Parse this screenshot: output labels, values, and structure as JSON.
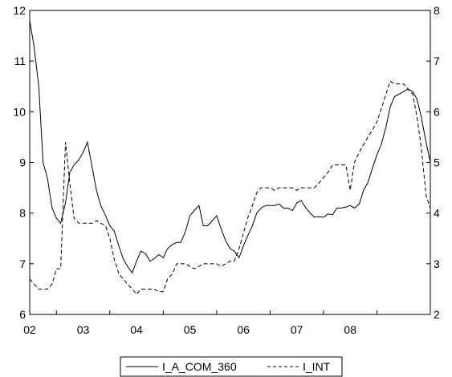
{
  "chart_data": {
    "type": "line",
    "x_categories": [
      "02",
      "03",
      "04",
      "05",
      "06",
      "07",
      "08"
    ],
    "x_start_year": 2001.5,
    "x_end_year": 2009.0,
    "y_left": {
      "min": 6,
      "max": 12,
      "ticks": [
        6,
        7,
        8,
        9,
        10,
        11,
        12
      ]
    },
    "y_right": {
      "min": 2,
      "max": 8,
      "ticks": [
        2,
        3,
        4,
        5,
        6,
        7,
        8
      ]
    },
    "grid": false,
    "legend_position": "bottom-center",
    "series": [
      {
        "name": "I_A_COM_360",
        "axis": "left",
        "style": "solid",
        "color": "#000000",
        "points": [
          [
            2001.5,
            11.8
          ],
          [
            2001.58,
            11.3
          ],
          [
            2001.67,
            10.5
          ],
          [
            2001.75,
            9.0
          ],
          [
            2001.83,
            8.7
          ],
          [
            2001.92,
            8.1
          ],
          [
            2002.0,
            7.9
          ],
          [
            2002.08,
            7.8
          ],
          [
            2002.17,
            8.2
          ],
          [
            2002.25,
            8.8
          ],
          [
            2002.33,
            8.95
          ],
          [
            2002.42,
            9.05
          ],
          [
            2002.5,
            9.2
          ],
          [
            2002.58,
            9.4
          ],
          [
            2002.67,
            8.9
          ],
          [
            2002.75,
            8.45
          ],
          [
            2002.83,
            8.15
          ],
          [
            2002.92,
            7.95
          ],
          [
            2003.0,
            7.75
          ],
          [
            2003.08,
            7.65
          ],
          [
            2003.17,
            7.35
          ],
          [
            2003.25,
            7.1
          ],
          [
            2003.33,
            6.95
          ],
          [
            2003.42,
            6.82
          ],
          [
            2003.5,
            7.05
          ],
          [
            2003.58,
            7.25
          ],
          [
            2003.67,
            7.2
          ],
          [
            2003.75,
            7.05
          ],
          [
            2003.83,
            7.1
          ],
          [
            2003.92,
            7.18
          ],
          [
            2004.0,
            7.12
          ],
          [
            2004.08,
            7.3
          ],
          [
            2004.17,
            7.38
          ],
          [
            2004.25,
            7.42
          ],
          [
            2004.33,
            7.42
          ],
          [
            2004.42,
            7.65
          ],
          [
            2004.5,
            7.95
          ],
          [
            2004.58,
            8.05
          ],
          [
            2004.67,
            8.15
          ],
          [
            2004.75,
            7.75
          ],
          [
            2004.83,
            7.75
          ],
          [
            2004.92,
            7.85
          ],
          [
            2005.0,
            7.95
          ],
          [
            2005.08,
            7.7
          ],
          [
            2005.17,
            7.45
          ],
          [
            2005.25,
            7.3
          ],
          [
            2005.33,
            7.25
          ],
          [
            2005.42,
            7.12
          ],
          [
            2005.5,
            7.35
          ],
          [
            2005.58,
            7.55
          ],
          [
            2005.67,
            7.75
          ],
          [
            2005.75,
            8.0
          ],
          [
            2005.83,
            8.1
          ],
          [
            2005.92,
            8.15
          ],
          [
            2006.0,
            8.15
          ],
          [
            2006.08,
            8.15
          ],
          [
            2006.17,
            8.18
          ],
          [
            2006.25,
            8.1
          ],
          [
            2006.33,
            8.1
          ],
          [
            2006.42,
            8.05
          ],
          [
            2006.5,
            8.2
          ],
          [
            2006.58,
            8.25
          ],
          [
            2006.67,
            8.1
          ],
          [
            2006.75,
            8.0
          ],
          [
            2006.83,
            7.92
          ],
          [
            2006.92,
            7.93
          ],
          [
            2007.0,
            7.92
          ],
          [
            2007.08,
            7.98
          ],
          [
            2007.17,
            7.97
          ],
          [
            2007.25,
            8.1
          ],
          [
            2007.33,
            8.1
          ],
          [
            2007.42,
            8.12
          ],
          [
            2007.5,
            8.15
          ],
          [
            2007.58,
            8.1
          ],
          [
            2007.67,
            8.18
          ],
          [
            2007.75,
            8.45
          ],
          [
            2007.83,
            8.6
          ],
          [
            2007.92,
            8.9
          ],
          [
            2008.0,
            9.15
          ],
          [
            2008.08,
            9.35
          ],
          [
            2008.17,
            9.7
          ],
          [
            2008.25,
            10.1
          ],
          [
            2008.33,
            10.3
          ],
          [
            2008.42,
            10.35
          ],
          [
            2008.5,
            10.4
          ],
          [
            2008.58,
            10.45
          ],
          [
            2008.67,
            10.4
          ],
          [
            2008.75,
            10.25
          ],
          [
            2008.83,
            9.9
          ],
          [
            2008.92,
            9.4
          ],
          [
            2009.0,
            9.0
          ]
        ]
      },
      {
        "name": "I_INT",
        "axis": "right",
        "style": "dashed",
        "color": "#000000",
        "points": [
          [
            2001.5,
            2.7
          ],
          [
            2001.58,
            2.6
          ],
          [
            2001.67,
            2.5
          ],
          [
            2001.75,
            2.5
          ],
          [
            2001.83,
            2.5
          ],
          [
            2001.92,
            2.6
          ],
          [
            2002.0,
            2.9
          ],
          [
            2002.08,
            2.9
          ],
          [
            2002.17,
            5.4
          ],
          [
            2002.25,
            4.6
          ],
          [
            2002.33,
            3.9
          ],
          [
            2002.42,
            3.8
          ],
          [
            2002.5,
            3.8
          ],
          [
            2002.58,
            3.8
          ],
          [
            2002.67,
            3.8
          ],
          [
            2002.75,
            3.85
          ],
          [
            2002.83,
            3.8
          ],
          [
            2002.92,
            3.75
          ],
          [
            2003.0,
            3.5
          ],
          [
            2003.08,
            3.1
          ],
          [
            2003.17,
            2.8
          ],
          [
            2003.25,
            2.7
          ],
          [
            2003.33,
            2.6
          ],
          [
            2003.42,
            2.5
          ],
          [
            2003.5,
            2.4
          ],
          [
            2003.58,
            2.5
          ],
          [
            2003.67,
            2.5
          ],
          [
            2003.75,
            2.5
          ],
          [
            2003.83,
            2.5
          ],
          [
            2003.92,
            2.45
          ],
          [
            2004.0,
            2.45
          ],
          [
            2004.08,
            2.7
          ],
          [
            2004.17,
            2.8
          ],
          [
            2004.25,
            3.0
          ],
          [
            2004.33,
            3.0
          ],
          [
            2004.42,
            3.0
          ],
          [
            2004.5,
            2.95
          ],
          [
            2004.58,
            2.9
          ],
          [
            2004.67,
            2.95
          ],
          [
            2004.75,
            3.0
          ],
          [
            2004.83,
            3.0
          ],
          [
            2004.92,
            3.0
          ],
          [
            2005.0,
            3.0
          ],
          [
            2005.08,
            2.95
          ],
          [
            2005.17,
            3.0
          ],
          [
            2005.25,
            3.05
          ],
          [
            2005.33,
            3.05
          ],
          [
            2005.42,
            3.3
          ],
          [
            2005.5,
            3.6
          ],
          [
            2005.58,
            3.9
          ],
          [
            2005.67,
            4.15
          ],
          [
            2005.75,
            4.4
          ],
          [
            2005.83,
            4.5
          ],
          [
            2005.92,
            4.5
          ],
          [
            2006.0,
            4.5
          ],
          [
            2006.08,
            4.45
          ],
          [
            2006.17,
            4.5
          ],
          [
            2006.25,
            4.5
          ],
          [
            2006.33,
            4.5
          ],
          [
            2006.42,
            4.5
          ],
          [
            2006.5,
            4.45
          ],
          [
            2006.58,
            4.5
          ],
          [
            2006.67,
            4.5
          ],
          [
            2006.75,
            4.5
          ],
          [
            2006.83,
            4.5
          ],
          [
            2006.92,
            4.6
          ],
          [
            2007.0,
            4.7
          ],
          [
            2007.08,
            4.8
          ],
          [
            2007.17,
            4.95
          ],
          [
            2007.25,
            4.95
          ],
          [
            2007.33,
            4.95
          ],
          [
            2007.42,
            4.95
          ],
          [
            2007.5,
            4.45
          ],
          [
            2007.58,
            5.0
          ],
          [
            2007.67,
            5.2
          ],
          [
            2007.75,
            5.35
          ],
          [
            2007.83,
            5.5
          ],
          [
            2007.92,
            5.65
          ],
          [
            2008.0,
            5.8
          ],
          [
            2008.08,
            6.05
          ],
          [
            2008.17,
            6.35
          ],
          [
            2008.25,
            6.6
          ],
          [
            2008.33,
            6.55
          ],
          [
            2008.42,
            6.55
          ],
          [
            2008.5,
            6.55
          ],
          [
            2008.58,
            6.45
          ],
          [
            2008.67,
            6.35
          ],
          [
            2008.75,
            5.9
          ],
          [
            2008.83,
            5.3
          ],
          [
            2008.92,
            4.35
          ],
          [
            2009.0,
            4.1
          ]
        ]
      }
    ]
  }
}
